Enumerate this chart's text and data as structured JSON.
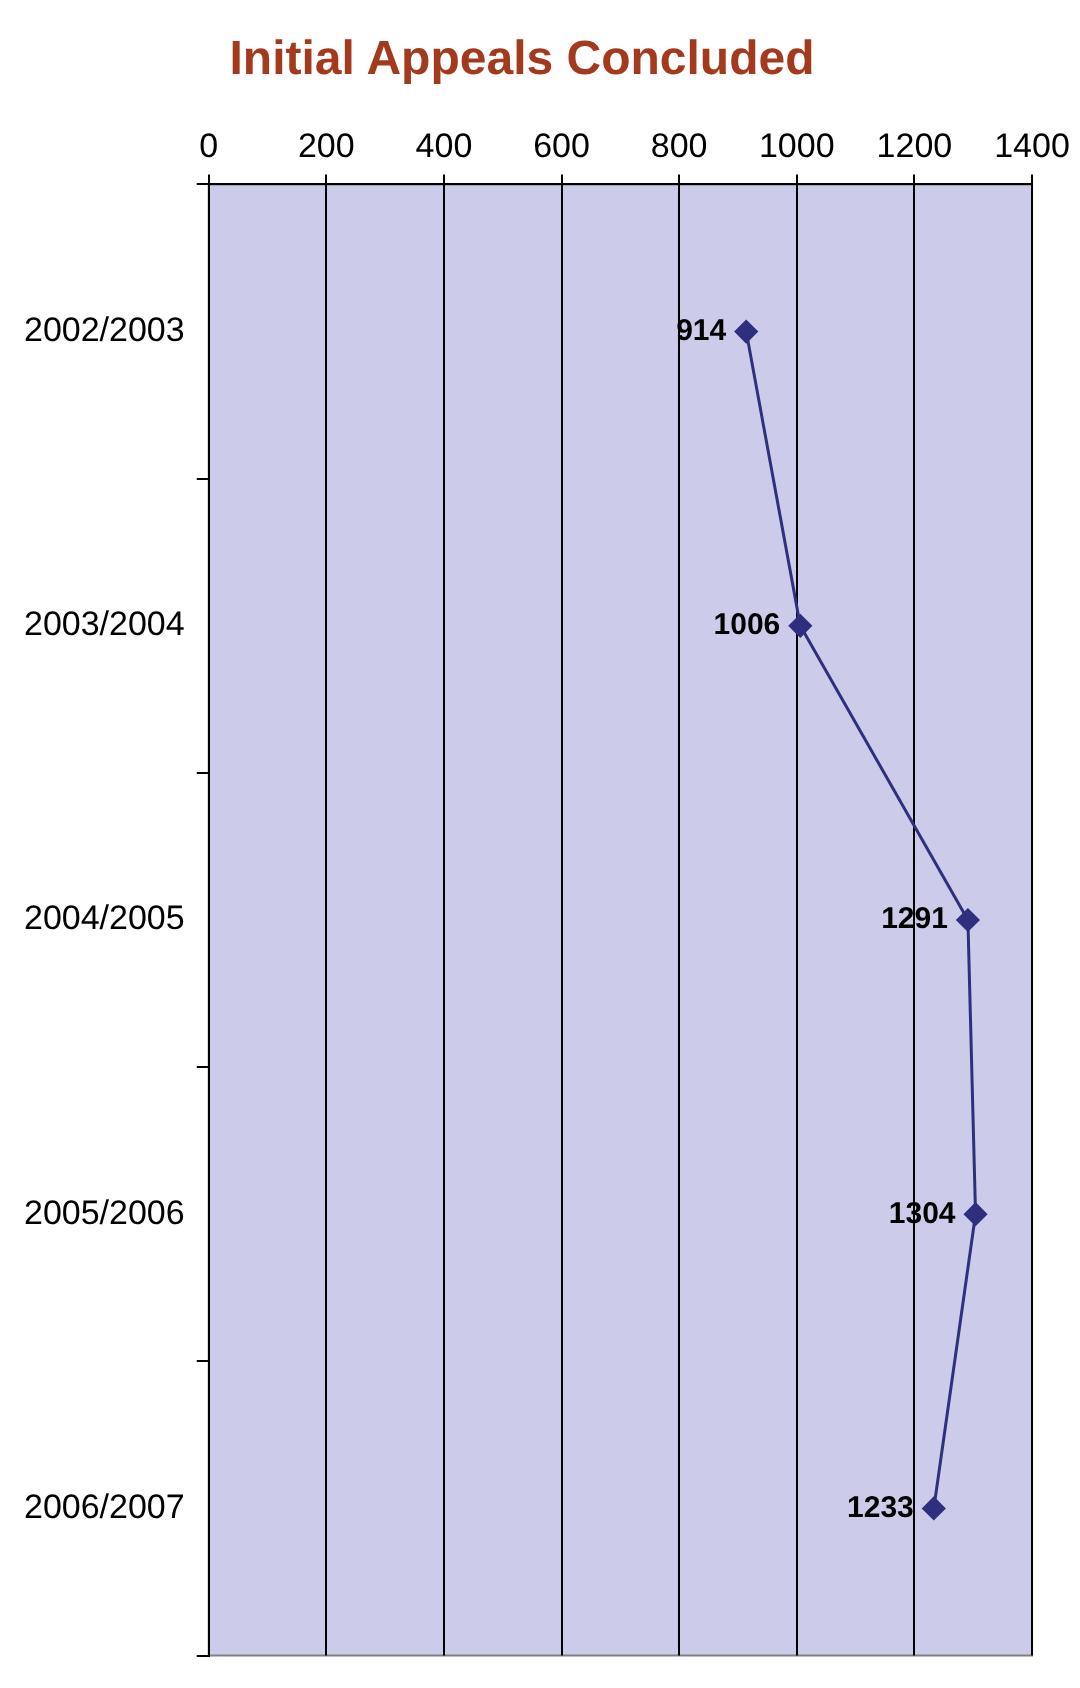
{
  "chart_data": {
    "type": "line",
    "title": "Initial Appeals Concluded",
    "orientation": "horizontal",
    "categories": [
      "2002/2003",
      "2003/2004",
      "2004/2005",
      "2005/2006",
      "2006/2007"
    ],
    "series": [
      {
        "color": "#2e2f7e",
        "values": [
          914,
          1006,
          1291,
          1304,
          1233
        ]
      }
    ],
    "xlim": [
      0,
      1400
    ],
    "xticks": [
      0,
      200,
      400,
      600,
      800,
      1000,
      1200,
      1400
    ],
    "grid": "x",
    "legend": false,
    "marker": "diamond",
    "line_style": "solid",
    "data_labels": true
  }
}
